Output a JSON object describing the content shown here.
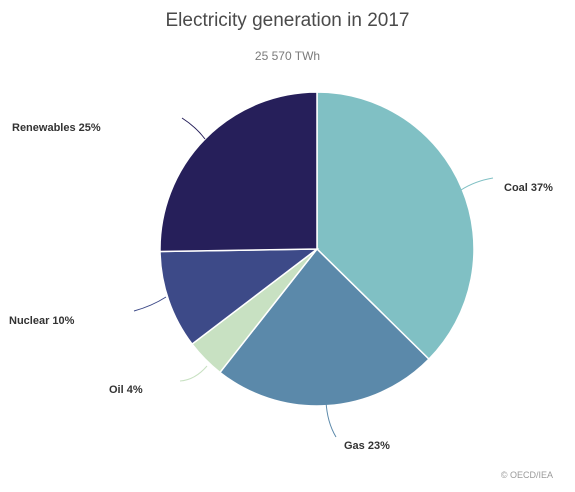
{
  "chart_data": {
    "type": "pie",
    "title": "Electricity generation in 2017",
    "subtitle": "25 570 TWh",
    "slices": [
      {
        "label": "Coal 37%",
        "value": 37,
        "color": "#80c0c4"
      },
      {
        "label": "Gas 23%",
        "value": 23,
        "color": "#5b89aa"
      },
      {
        "label": "Oil 4%",
        "value": 4,
        "color": "#c8e1c2"
      },
      {
        "label": "Nuclear 10%",
        "value": 10,
        "color": "#3d4a88"
      },
      {
        "label": "Renewables 25%",
        "value": 25,
        "color": "#261f5a"
      }
    ],
    "start_direction": "top",
    "rotation": "clockwise"
  },
  "credit": "© OECD/IEA"
}
